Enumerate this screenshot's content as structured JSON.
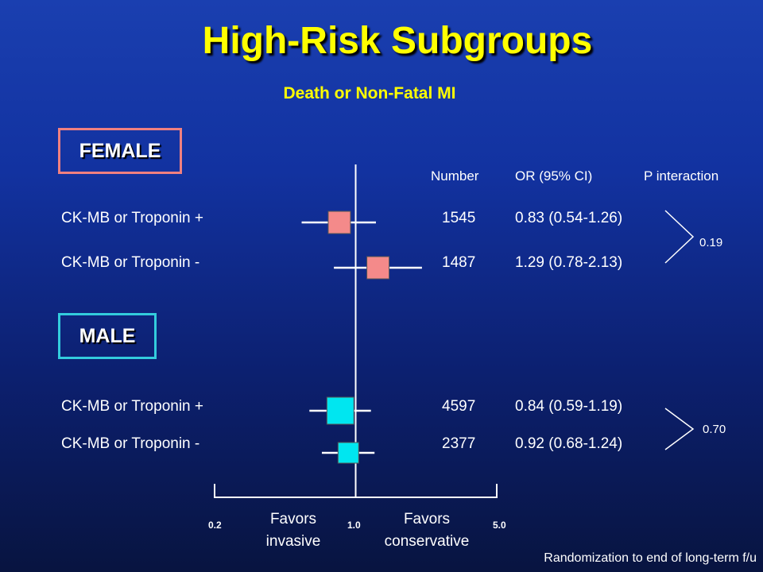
{
  "title": "High-Risk Subgroups",
  "subtitle": "Death or Non-Fatal MI",
  "headers": {
    "number": "Number",
    "or": "OR (95% CI)",
    "p": "P interaction"
  },
  "groups": {
    "female": "FEMALE",
    "male": "MALE"
  },
  "axis": {
    "ticks": [
      "0.2",
      "1.0",
      "5.0"
    ],
    "left_label": "Favors invasive",
    "right_label": "Favors conservative"
  },
  "footnote": "Randomization to end of long-term f/u",
  "colors": {
    "female": "#f48a8a",
    "male": "#00e6f0"
  },
  "chart_data": {
    "type": "forest",
    "scale": "log",
    "xlim": [
      0.2,
      5.0
    ],
    "reference": 1.0,
    "rows": [
      {
        "group": "FEMALE",
        "label": "CK-MB or Troponin +",
        "number": "1545",
        "or_text": "0.83 (0.54-1.26)",
        "or": 0.83,
        "lo": 0.54,
        "hi": 1.26
      },
      {
        "group": "FEMALE",
        "label": "CK-MB or Troponin -",
        "number": "1487",
        "or_text": "1.29 (0.78-2.13)",
        "or": 1.29,
        "lo": 0.78,
        "hi": 2.13
      },
      {
        "group": "MALE",
        "label": "CK-MB or Troponin +",
        "number": "4597",
        "or_text": "0.84 (0.59-1.19)",
        "or": 0.84,
        "lo": 0.59,
        "hi": 1.19
      },
      {
        "group": "MALE",
        "label": "CK-MB or Troponin -",
        "number": "2377",
        "or_text": "0.92 (0.68-1.24)",
        "or": 0.92,
        "lo": 0.68,
        "hi": 1.24
      }
    ],
    "interactions": [
      {
        "group": "FEMALE",
        "p": "0.19"
      },
      {
        "group": "MALE",
        "p": "0.70"
      }
    ]
  }
}
